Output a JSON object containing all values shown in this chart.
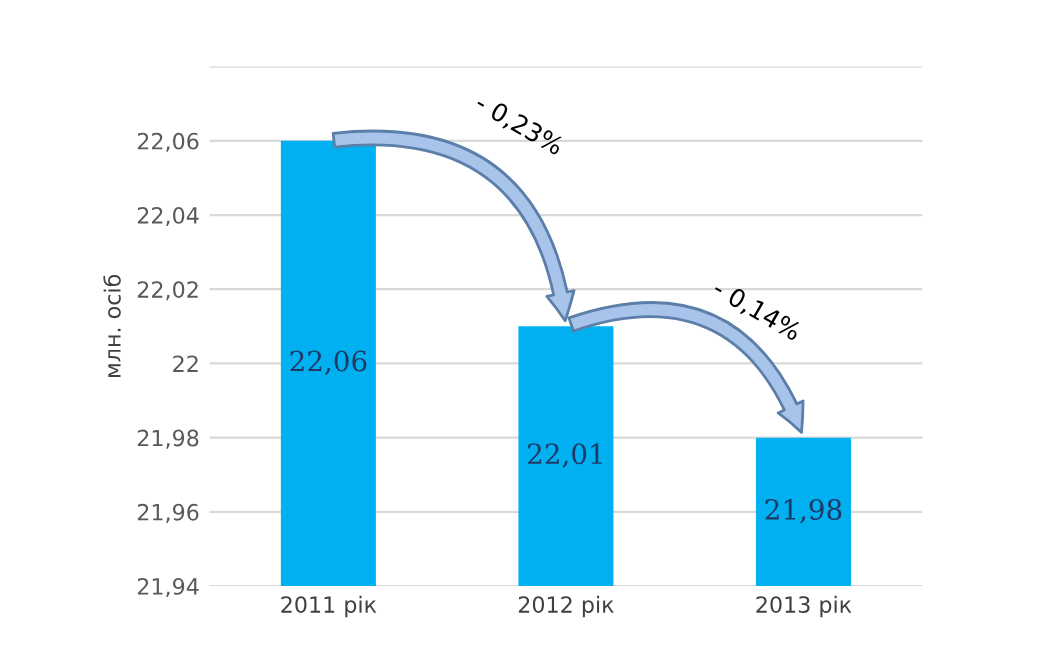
{
  "chart_data": {
    "type": "bar",
    "ylabel": "млн. осіб",
    "categories": [
      "2011 рік",
      "2012 рік",
      "2013 рік"
    ],
    "values": [
      22.06,
      22.01,
      21.98
    ],
    "value_labels": [
      "22,06",
      "22,01",
      "21,98"
    ],
    "color": "#00b0f0",
    "ylim": [
      21.94,
      22.08
    ],
    "yticks": [
      {
        "value": 21.94,
        "label": "21,94"
      },
      {
        "value": 21.96,
        "label": "21,96"
      },
      {
        "value": 21.98,
        "label": "21,98"
      },
      22,
      {
        "value": 22.02,
        "label": "22,02"
      },
      {
        "value": 22.04,
        "label": "22,04"
      },
      {
        "value": 22.06,
        "label": "22,06"
      },
      {
        "value": 22.08,
        "label": null
      }
    ],
    "grid": "y",
    "annotations": [
      "- 0,23%",
      "- 0,14%"
    ]
  }
}
